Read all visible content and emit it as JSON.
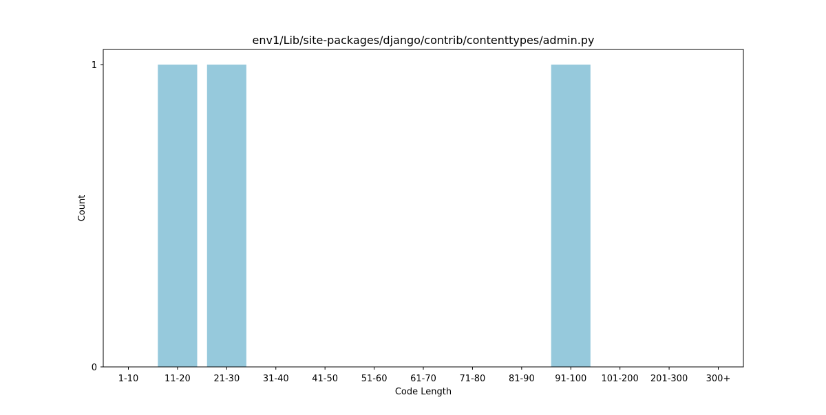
{
  "chart_data": {
    "type": "bar",
    "title": "env1/Lib/site-packages/django/contrib/contenttypes/admin.py",
    "xlabel": "Code Length",
    "ylabel": "Count",
    "categories": [
      "1-10",
      "11-20",
      "21-30",
      "31-40",
      "41-50",
      "51-60",
      "61-70",
      "71-80",
      "81-90",
      "91-100",
      "101-200",
      "201-300",
      "300+"
    ],
    "values": [
      0,
      1,
      1,
      0,
      0,
      0,
      0,
      0,
      0,
      1,
      0,
      0,
      0
    ],
    "ylim": [
      0,
      1
    ],
    "yticks": [
      "0",
      "1"
    ],
    "grid": false,
    "bar_color": "#96c9dc"
  }
}
